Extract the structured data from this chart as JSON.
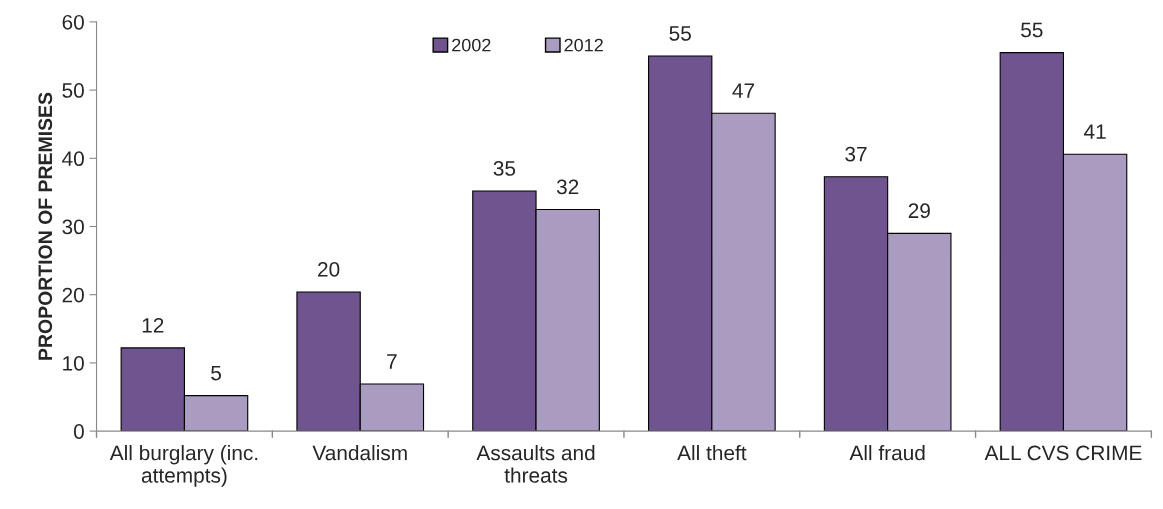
{
  "chart_data": {
    "type": "bar",
    "ylabel": "PROPORTION OF PREMISES",
    "categories": [
      "All burglary (inc.\nattempts)",
      "Vandalism",
      "Assaults and\nthreats",
      "All theft",
      "All fraud",
      "ALL CVS CRIME"
    ],
    "series": [
      {
        "name": "2002",
        "color": "#6f5490",
        "values": [
          12.2,
          20.4,
          35.2,
          55.0,
          37.3,
          55.5
        ],
        "value_labels": [
          "12",
          "20",
          "35",
          "55",
          "37",
          "55"
        ]
      },
      {
        "name": "2012",
        "color": "#a99cc0",
        "values": [
          5.2,
          6.9,
          32.5,
          46.6,
          29.0,
          40.6
        ],
        "value_labels": [
          "5",
          "7",
          "32",
          "47",
          "29",
          "41"
        ]
      }
    ],
    "ylim": [
      0,
      60
    ],
    "yticks": [
      0,
      10,
      20,
      30,
      40,
      50,
      60
    ],
    "grid": false,
    "legend": "top"
  }
}
